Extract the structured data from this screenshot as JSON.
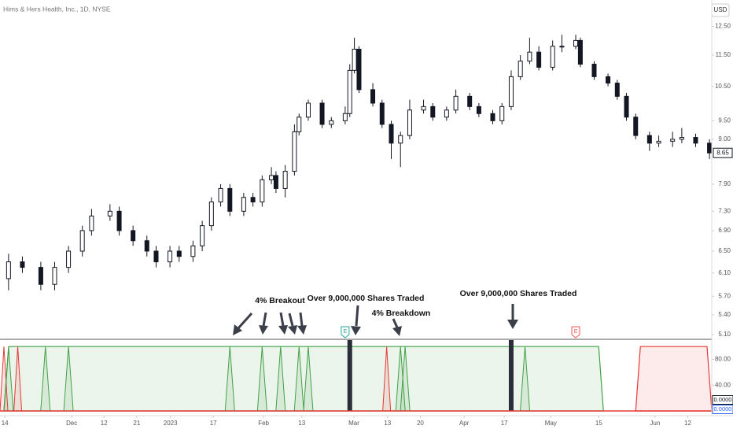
{
  "chart_data": {
    "type": "candlestick",
    "title": "Hims & Hers Health, Inc., 1D, NYSE",
    "currency": "USD",
    "log_scale": true,
    "x": [
      1,
      4,
      8,
      11,
      14,
      17,
      19,
      23,
      25,
      28,
      31,
      33,
      36,
      38,
      41,
      43,
      45,
      47,
      49,
      52,
      54,
      56,
      58,
      59,
      61,
      63,
      64,
      66,
      69,
      71,
      74,
      75,
      76,
      77,
      80,
      82,
      84,
      86,
      88,
      91,
      93,
      96,
      98,
      101,
      103,
      106,
      108,
      110,
      112,
      114,
      116,
      119,
      121,
      124,
      125,
      128,
      131,
      133,
      135,
      137,
      140,
      142,
      145,
      147,
      150,
      153
    ],
    "open": [
      6.0,
      6.3,
      6.2,
      5.9,
      6.2,
      6.5,
      6.9,
      7.2,
      7.3,
      6.9,
      6.7,
      6.5,
      6.3,
      6.5,
      6.4,
      6.6,
      7.0,
      7.5,
      7.8,
      7.3,
      7.6,
      7.5,
      8.0,
      8.1,
      7.8,
      8.2,
      9.2,
      9.6,
      10.0,
      9.4,
      9.5,
      9.7,
      11.0,
      11.7,
      10.4,
      10.0,
      9.4,
      8.9,
      9.1,
      9.8,
      9.9,
      9.6,
      9.8,
      10.2,
      9.9,
      9.7,
      9.5,
      9.9,
      10.8,
      11.3,
      11.6,
      11.1,
      11.8,
      11.8,
      12.0,
      11.2,
      10.8,
      10.6,
      10.2,
      9.6,
      9.1,
      8.9,
      8.95,
      9.0,
      9.05,
      8.9
    ],
    "high": [
      6.45,
      6.4,
      6.3,
      6.3,
      6.6,
      7.0,
      7.35,
      7.45,
      7.4,
      7.0,
      6.8,
      6.6,
      6.6,
      6.6,
      6.7,
      7.1,
      7.6,
      7.9,
      7.9,
      7.7,
      7.7,
      8.1,
      8.3,
      8.2,
      8.35,
      9.4,
      9.7,
      10.1,
      10.1,
      9.6,
      9.9,
      11.2,
      12.1,
      11.8,
      10.6,
      10.1,
      9.5,
      9.2,
      10.1,
      10.1,
      10.0,
      9.9,
      10.4,
      10.3,
      10.0,
      9.8,
      10.0,
      11.0,
      11.5,
      12.1,
      11.8,
      12.0,
      12.2,
      12.2,
      12.1,
      11.3,
      10.9,
      10.7,
      10.3,
      9.7,
      9.2,
      9.1,
      9.2,
      9.3,
      9.15,
      9.0
    ],
    "low": [
      5.8,
      6.1,
      5.8,
      5.8,
      6.1,
      6.4,
      6.8,
      7.1,
      6.8,
      6.6,
      6.4,
      6.2,
      6.2,
      6.3,
      6.3,
      6.5,
      6.9,
      7.4,
      7.2,
      7.2,
      7.4,
      7.4,
      7.9,
      7.7,
      7.6,
      8.1,
      9.1,
      9.5,
      9.3,
      9.3,
      9.4,
      9.6,
      10.9,
      10.3,
      9.9,
      9.3,
      8.5,
      8.3,
      9.0,
      9.7,
      9.5,
      9.5,
      9.7,
      9.8,
      9.6,
      9.4,
      9.4,
      9.8,
      10.7,
      11.2,
      11.0,
      11.0,
      11.6,
      11.7,
      11.1,
      10.7,
      10.5,
      10.1,
      9.5,
      9.0,
      8.7,
      8.8,
      8.8,
      8.9,
      8.8,
      8.5
    ],
    "close": [
      6.3,
      6.2,
      5.9,
      6.2,
      6.5,
      6.9,
      7.2,
      7.3,
      6.9,
      6.7,
      6.5,
      6.3,
      6.5,
      6.4,
      6.6,
      7.0,
      7.5,
      7.8,
      7.3,
      7.6,
      7.5,
      8.0,
      8.1,
      7.8,
      8.2,
      9.2,
      9.6,
      10.0,
      9.4,
      9.5,
      9.7,
      11.0,
      11.7,
      10.4,
      10.0,
      9.4,
      8.9,
      9.1,
      9.8,
      9.9,
      9.6,
      9.8,
      10.2,
      9.9,
      9.7,
      9.5,
      9.9,
      10.8,
      11.3,
      11.6,
      11.1,
      11.8,
      11.8,
      12.0,
      11.2,
      10.8,
      10.6,
      10.2,
      9.6,
      9.1,
      8.9,
      8.95,
      9.0,
      9.05,
      8.9,
      8.65
    ],
    "xlim": [
      0,
      153.5
    ],
    "xticks": [
      {
        "value": 0.2,
        "label": "14"
      },
      {
        "value": 14.7,
        "label": "Dec"
      },
      {
        "value": 21.7,
        "label": "12"
      },
      {
        "value": 28.8,
        "label": "21"
      },
      {
        "value": 36.1,
        "label": "2023"
      },
      {
        "value": 45.4,
        "label": "17"
      },
      {
        "value": 56.3,
        "label": "Feb"
      },
      {
        "value": 64.6,
        "label": "13"
      },
      {
        "value": 75.9,
        "label": "Mar"
      },
      {
        "value": 83.2,
        "label": "13"
      },
      {
        "value": 90.3,
        "label": "20"
      },
      {
        "value": 99.8,
        "label": "Apr"
      },
      {
        "value": 108.5,
        "label": "17"
      },
      {
        "value": 118.6,
        "label": "May"
      },
      {
        "value": 129,
        "label": "15"
      },
      {
        "value": 141.2,
        "label": "Jun"
      },
      {
        "value": 148.3,
        "label": "12"
      }
    ],
    "ylim": [
      5.04,
      13.5
    ],
    "yticks": [
      {
        "value": 12.5,
        "label": "12.50"
      },
      {
        "value": 11.5,
        "label": "11.50"
      },
      {
        "value": 10.5,
        "label": "10.50"
      },
      {
        "value": 9.5,
        "label": "9.50"
      },
      {
        "value": 9.0,
        "label": "9.00"
      },
      {
        "value": 7.9,
        "label": "7.90"
      },
      {
        "value": 7.3,
        "label": "7.30"
      },
      {
        "value": 6.9,
        "label": "6.90"
      },
      {
        "value": 6.5,
        "label": "6.50"
      },
      {
        "value": 6.1,
        "label": "6.10"
      },
      {
        "value": 5.7,
        "label": "5.70"
      },
      {
        "value": 5.4,
        "label": "5.40"
      },
      {
        "value": 5.1,
        "label": "5.10"
      }
    ],
    "earnings": [
      {
        "x": 74,
        "label": "E",
        "color": "#26a69a"
      },
      {
        "x": 124,
        "label": "E",
        "color": "#ef5350"
      }
    ],
    "annotations": [
      "4% Breakout",
      "Over 9,000,000 Shares Traded",
      "4% Breakdown",
      "Over 9,000,000 Shares Traded"
    ],
    "indicator": {
      "ylim": [
        0,
        110
      ],
      "yticks": [
        {
          "value": 80,
          "label": "80.00"
        },
        {
          "value": 40,
          "label": "40.00"
        }
      ],
      "last_values": [
        {
          "value": 0,
          "label": "0.0000",
          "color": "#131722"
        },
        {
          "value": 0,
          "label": "0.0000",
          "color": "#2962ff"
        }
      ],
      "signal_level": 100,
      "buy_signals": {
        "color": "#43a047",
        "x": [
          1,
          9,
          14,
          49,
          56,
          60,
          64,
          66,
          86,
          87,
          113
        ]
      },
      "sell_signals": {
        "color": "#e53935",
        "x": [
          0,
          3,
          83
        ]
      },
      "volume_signals": {
        "color": "#2a2e39",
        "x": [
          75,
          110
        ]
      },
      "zones": [
        {
          "from": 0,
          "to": 130,
          "color": "#43a047"
        },
        {
          "from": 137,
          "to": 153.5,
          "color": "#e53935"
        }
      ]
    }
  }
}
